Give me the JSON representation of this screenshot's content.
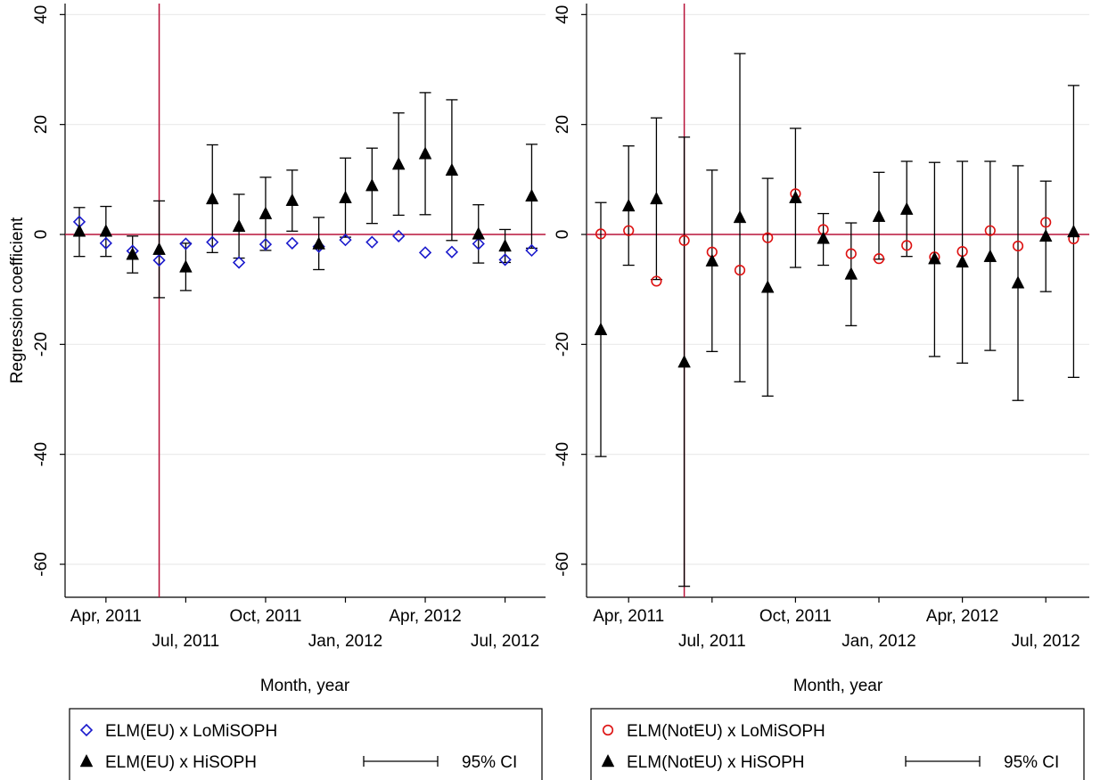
{
  "chart_data": [
    {
      "type": "scatter",
      "ylabel": "Regression coefficient",
      "xlabel": "Month, year",
      "ylim": [
        -66,
        42
      ],
      "yticks": [
        40,
        20,
        0,
        -20,
        -40,
        -60
      ],
      "xticks": [
        "Apr, 2011",
        "Jul, 2011",
        "Oct, 2011",
        "Jan, 2012",
        "Apr, 2012",
        "Jul, 2012"
      ],
      "x_months": [
        "Mar, 2011",
        "Apr, 2011",
        "May, 2011",
        "Jun, 2011",
        "Jul, 2011",
        "Aug, 2011",
        "Sep, 2011",
        "Oct, 2011",
        "Nov, 2011",
        "Dec, 2011",
        "Jan, 2012",
        "Feb, 2012",
        "Mar, 2012",
        "Apr, 2012",
        "May, 2012",
        "Jun, 2012",
        "Jul, 2012",
        "Aug, 2012"
      ],
      "reference_line_month": "Jun, 2011",
      "reference_line_y": 0,
      "grid": true,
      "series": [
        {
          "name": "ELM(EU) x LoMiSOPH",
          "marker": "diamond-hollow",
          "color": "#1a1acc",
          "values": [
            2.3,
            -1.6,
            -3.0,
            -4.7,
            -1.7,
            -1.4,
            -5.1,
            -1.8,
            -1.6,
            -2.2,
            -1.0,
            -1.4,
            -0.3,
            -3.3,
            -3.2,
            -1.7,
            -4.6,
            -2.9
          ]
        },
        {
          "name": "ELM(EU) x HiSOPH",
          "marker": "triangle-filled",
          "color": "#000000",
          "values": [
            0.6,
            0.6,
            -3.6,
            -2.7,
            -5.9,
            6.5,
            1.5,
            3.8,
            6.2,
            -1.7,
            6.7,
            8.9,
            12.8,
            14.7,
            11.7,
            0.1,
            -2.1,
            7.0
          ],
          "ci_low": [
            -4.0,
            -4.0,
            -7.0,
            -11.5,
            -10.2,
            -3.3,
            -4.3,
            -2.9,
            0.6,
            -6.4,
            -0.5,
            2.0,
            3.5,
            3.6,
            -1.1,
            -5.2,
            -5.1,
            -2.5
          ],
          "ci_high": [
            4.9,
            5.1,
            -0.3,
            6.1,
            -1.6,
            16.3,
            7.3,
            10.4,
            11.7,
            3.1,
            13.9,
            15.7,
            22.1,
            25.8,
            24.5,
            5.4,
            0.9,
            16.4
          ]
        }
      ],
      "legend": {
        "ci_label": "95% CI"
      }
    },
    {
      "type": "scatter",
      "xlabel": "Month, year",
      "ylim": [
        -66,
        42
      ],
      "yticks": [
        40,
        20,
        0,
        -20,
        -40,
        -60
      ],
      "xticks": [
        "Apr, 2011",
        "Jul, 2011",
        "Oct, 2011",
        "Jan, 2012",
        "Apr, 2012",
        "Jul, 2012"
      ],
      "x_months": [
        "Mar, 2011",
        "Apr, 2011",
        "May, 2011",
        "Jun, 2011",
        "Jul, 2011",
        "Aug, 2011",
        "Sep, 2011",
        "Oct, 2011",
        "Nov, 2011",
        "Dec, 2011",
        "Jan, 2012",
        "Feb, 2012",
        "Mar, 2012",
        "Apr, 2012",
        "May, 2012",
        "Jun, 2012",
        "Jul, 2012",
        "Aug, 2012"
      ],
      "reference_line_month": "Jun, 2011",
      "reference_line_y": 0,
      "grid": true,
      "series": [
        {
          "name": "ELM(NotEU) x LoMiSOPH",
          "marker": "circle-hollow",
          "color": "#dd1111",
          "values": [
            0.1,
            0.7,
            -8.5,
            -1.1,
            -3.2,
            -6.5,
            -0.6,
            7.4,
            0.9,
            -3.5,
            -4.4,
            -2.0,
            -4.1,
            -3.1,
            0.7,
            -2.1,
            2.2,
            -0.8
          ]
        },
        {
          "name": "ELM(NotEU) x HiSOPH",
          "marker": "triangle-filled",
          "color": "#000000",
          "values": [
            -17.3,
            5.2,
            6.5,
            -23.2,
            -4.8,
            3.1,
            -9.6,
            6.7,
            -0.7,
            -7.2,
            3.3,
            4.6,
            -4.4,
            -5.0,
            -4.0,
            -8.8,
            -0.3,
            0.5
          ],
          "ci_low": [
            -40.4,
            -5.6,
            -8.2,
            -64.0,
            -21.3,
            -26.8,
            -29.4,
            -6.0,
            -5.6,
            -16.6,
            -4.5,
            -4.0,
            -22.2,
            -23.4,
            -21.1,
            -30.2,
            -10.4,
            -26.0
          ],
          "ci_high": [
            5.8,
            16.1,
            21.2,
            17.7,
            11.7,
            32.9,
            10.2,
            19.3,
            3.8,
            2.1,
            11.3,
            13.3,
            13.1,
            13.3,
            13.3,
            12.5,
            9.7,
            27.1
          ]
        }
      ],
      "legend": {
        "ci_label": "95% CI"
      }
    }
  ]
}
